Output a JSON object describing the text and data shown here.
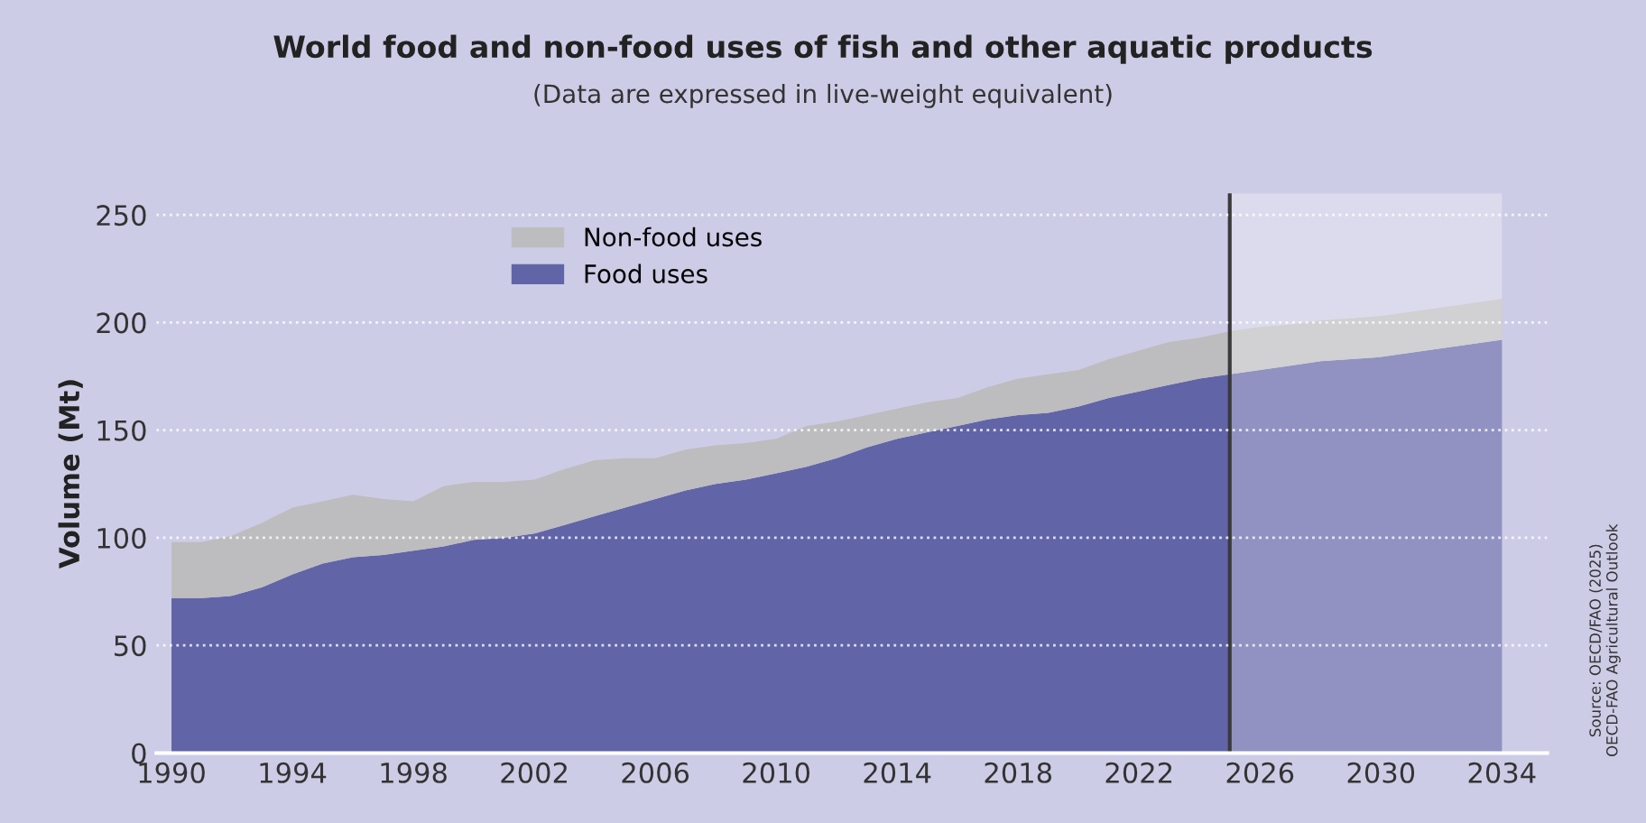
{
  "chart_data": {
    "type": "area",
    "stacked": true,
    "title": "World food and non-food uses of fish and other aquatic products",
    "subtitle": "(Data are expressed in live-weight equivalent)",
    "ylabel": "Volume (Mt)",
    "x": [
      1990,
      1991,
      1992,
      1993,
      1994,
      1995,
      1996,
      1997,
      1998,
      1999,
      2000,
      2001,
      2002,
      2003,
      2004,
      2005,
      2006,
      2007,
      2008,
      2009,
      2010,
      2011,
      2012,
      2013,
      2014,
      2015,
      2016,
      2017,
      2018,
      2019,
      2020,
      2021,
      2022,
      2023,
      2024,
      2025,
      2026,
      2027,
      2028,
      2029,
      2030,
      2031,
      2032,
      2033,
      2034
    ],
    "series": [
      {
        "name": "Food uses",
        "color": "#6264a8",
        "values": [
          72,
          72,
          73,
          77,
          83,
          88,
          91,
          92,
          94,
          96,
          99,
          100,
          102,
          106,
          110,
          114,
          118,
          122,
          125,
          127,
          130,
          133,
          137,
          142,
          146,
          149,
          152,
          155,
          157,
          158,
          161,
          165,
          168,
          171,
          174,
          176,
          178,
          180,
          182,
          183,
          184,
          186,
          188,
          190,
          192
        ]
      },
      {
        "name": "Non-food uses",
        "color": "#bdbcbf",
        "values": [
          26,
          26,
          28,
          30,
          31,
          29,
          29,
          26,
          23,
          28,
          27,
          26,
          25,
          26,
          26,
          23,
          19,
          19,
          18,
          17,
          16,
          19,
          17,
          15,
          14,
          14,
          13,
          15,
          17,
          18,
          17,
          18,
          19,
          20,
          19,
          20,
          20,
          19,
          19,
          19,
          19,
          19,
          19,
          19,
          19
        ]
      }
    ],
    "xlim": [
      1989.5,
      2035.5
    ],
    "xticks": [
      1990,
      1994,
      1998,
      2002,
      2006,
      2010,
      2014,
      2018,
      2022,
      2026,
      2030,
      2034
    ],
    "ylim": [
      0,
      260
    ],
    "yticks": [
      0,
      50,
      100,
      150,
      200,
      250
    ],
    "grid": "y",
    "legend": "top left",
    "ref_lines": [
      {
        "axis": "x",
        "value": 2025,
        "color": "#3a3a3a"
      }
    ],
    "bands": [
      {
        "axis": "x",
        "from": 2025,
        "to": 2034,
        "color": "#ffffff"
      }
    ],
    "annotations": [
      "Source: OECD/FAO (2025)\nOECD-FAO Agricultural Outlook"
    ]
  }
}
